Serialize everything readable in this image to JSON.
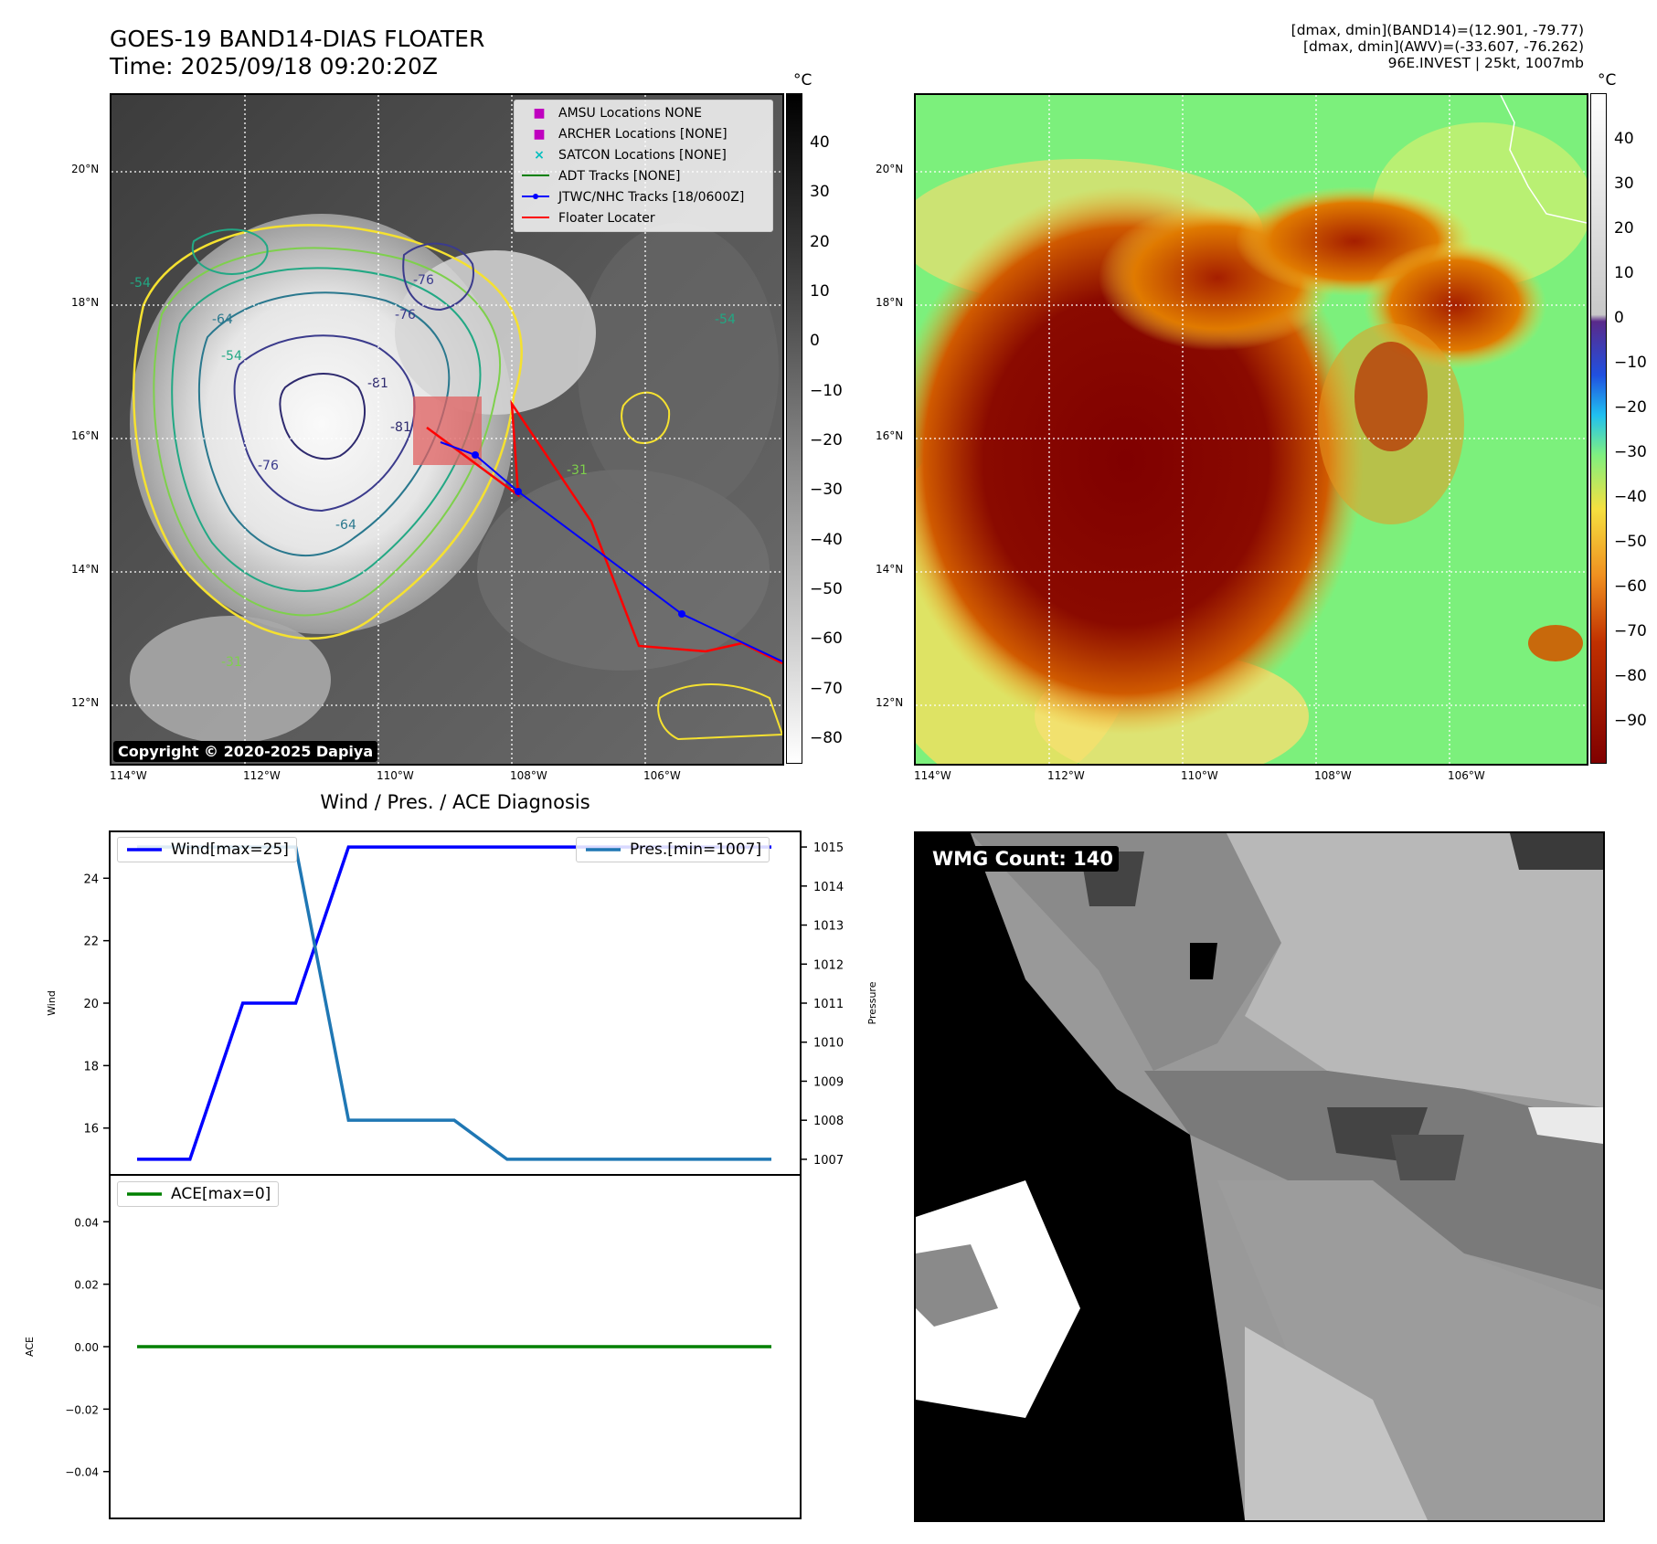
{
  "header": {
    "title": "GOES-19 BAND14-DIAS FLOATER",
    "time": "Time: 2025/09/18 09:20:20Z",
    "info_lines": [
      "[dmax, dmin](BAND14)=(12.901, -79.77)",
      "[dmax, dmin](AWV)=(-33.607, -76.262)",
      "96E.INVEST | 25kt, 1007mb"
    ]
  },
  "map_panel": {
    "lat_labels": [
      "20°N",
      "18°N",
      "16°N",
      "14°N",
      "12°N"
    ],
    "lon_labels": [
      "114°W",
      "112°W",
      "110°W",
      "108°W",
      "106°W"
    ],
    "copyright": "Copyright © 2020-2025 Dapiya",
    "colorbar_unit": "°C",
    "colorbar_ticks": [
      "40",
      "30",
      "20",
      "10",
      "0",
      "−10",
      "−20",
      "−30",
      "−40",
      "−50",
      "−60",
      "−70",
      "−80"
    ],
    "contour_labels": [
      "-76",
      "-76",
      "-81",
      "-81",
      "-76",
      "-64",
      "-54",
      "-54",
      "-64",
      "-31",
      "-31",
      "-54"
    ],
    "legend": [
      {
        "label": "AMSU Locations NONE",
        "marker": "square",
        "color": "#bf00bf"
      },
      {
        "label": "ARCHER Locations [NONE]",
        "marker": "square",
        "color": "#bf00bf"
      },
      {
        "label": "SATCON Locations [NONE]",
        "marker": "x",
        "color": "#00bfbf"
      },
      {
        "label": "ADT Tracks [NONE]",
        "marker": "line",
        "color": "#008000"
      },
      {
        "label": "JTWC/NHC Tracks [18/0600Z]",
        "marker": "line-dot",
        "color": "#0000ff"
      },
      {
        "label": "Floater Locater",
        "marker": "line",
        "color": "#ff0000"
      }
    ]
  },
  "wv_panel": {
    "colorbar_unit": "°C",
    "colorbar_ticks": [
      "40",
      "30",
      "20",
      "10",
      "0",
      "−10",
      "−20",
      "−30",
      "−40",
      "−50",
      "−60",
      "−70",
      "−80",
      "−90"
    ]
  },
  "wmg_panel": {
    "label": "WMG Count: 140"
  },
  "diag_panel": {
    "title": "Wind / Pres. / ACE Diagnosis",
    "wind_legend": "Wind[max=25]",
    "pres_legend": "Pres.[min=1007]",
    "ace_legend": "ACE[max=0]",
    "wind_ylabel": "Wind",
    "pres_ylabel": "Pressure",
    "ace_ylabel": "ACE"
  },
  "chart_data": [
    {
      "type": "line",
      "title": "Wind / Pres. / ACE Diagnosis",
      "x": [
        0,
        1,
        2,
        3,
        4,
        5,
        6,
        7,
        8,
        9,
        10,
        11,
        12
      ],
      "series": [
        {
          "name": "Wind[max=25]",
          "axis": "left",
          "color": "#0000ff",
          "values": [
            15,
            15,
            20,
            20,
            25,
            25,
            25,
            25,
            25,
            25,
            25,
            25,
            25
          ]
        },
        {
          "name": "Pres.[min=1007]",
          "axis": "right",
          "color": "#1f77b4",
          "values": [
            1015,
            1015,
            1015,
            1015,
            1008,
            1008,
            1008,
            1007,
            1007,
            1007,
            1007,
            1007,
            1007
          ]
        }
      ],
      "ylabel": "Wind",
      "ylim": [
        14.5,
        25.5
      ],
      "yticks": [
        16,
        18,
        20,
        22,
        24
      ],
      "y2label": "Pressure",
      "y2lim": [
        1006.6,
        1015.4
      ],
      "y2ticks": [
        1007,
        1008,
        1009,
        1010,
        1011,
        1012,
        1013,
        1014,
        1015
      ],
      "legend": "top-left / top-right"
    },
    {
      "type": "line",
      "x": [
        0,
        1,
        2,
        3,
        4,
        5,
        6,
        7,
        8,
        9,
        10,
        11,
        12
      ],
      "series": [
        {
          "name": "ACE[max=0]",
          "color": "#008000",
          "values": [
            0,
            0,
            0,
            0,
            0,
            0,
            0,
            0,
            0,
            0,
            0,
            0,
            0
          ]
        }
      ],
      "ylabel": "ACE",
      "ylim": [
        -0.055,
        0.055
      ],
      "yticks": [
        0.04,
        0.02,
        0.0,
        -0.02,
        -0.04
      ],
      "legend": "top-left"
    }
  ]
}
